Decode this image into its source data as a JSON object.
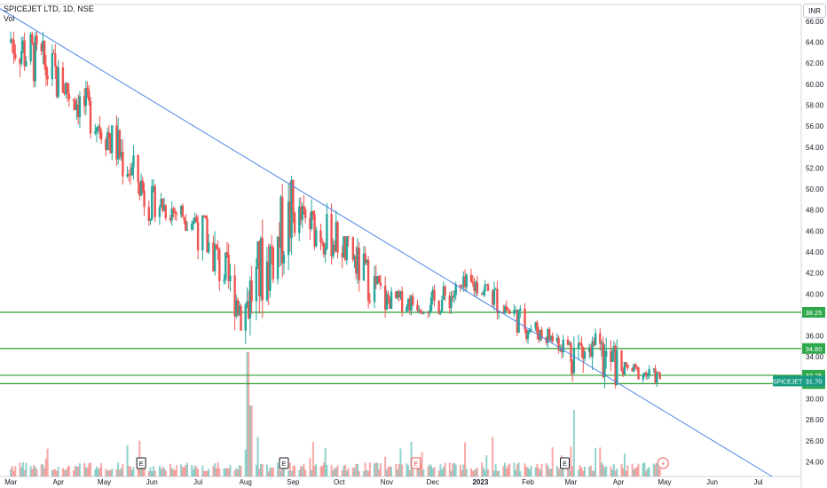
{
  "header": {
    "title": "SPICEJET LTD, 1D, NSE",
    "volume_label": "Vol",
    "currency": "INR"
  },
  "colors": {
    "up": "#26a69a",
    "down": "#ef5350",
    "support_lines": "#2e9e2e",
    "trendline": "#4a86e8",
    "axis_text": "#131722",
    "grid_border": "#d1d4dc",
    "tag_green": "#2ea84a",
    "tag_teal": "#1b9c85"
  },
  "icons": {
    "event_marker": "earnings-e-icon",
    "dividend_marker": "dividend-e-icon",
    "lightning": "lightning-icon"
  },
  "chart_data": {
    "type": "candlestick",
    "title": "SPICEJET LTD, 1D, NSE",
    "xlabel": "",
    "ylabel": "",
    "currency": "INR",
    "y_ticks": [
      24.0,
      26.0,
      28.0,
      30.0,
      32.0,
      34.0,
      36.0,
      38.0,
      40.0,
      42.0,
      44.0,
      46.0,
      48.0,
      50.0,
      52.0,
      54.0,
      56.0,
      58.0,
      60.0,
      62.0,
      64.0,
      66.0
    ],
    "ylim": [
      22.6,
      67.6
    ],
    "x_ticks": [
      "Mar",
      "Apr",
      "May",
      "Jun",
      "Jul",
      "Aug",
      "Sep",
      "Oct",
      "Nov",
      "Dec",
      "2023",
      "Feb",
      "Mar",
      "Apr",
      "May",
      "Jun",
      "Jul"
    ],
    "grid": false,
    "horizontal_levels": [
      {
        "label": "38.25",
        "value": 38.25
      },
      {
        "label": "34.80",
        "value": 34.8
      },
      {
        "label": "32.25",
        "value": 32.25
      },
      {
        "label": "31.45",
        "value": 31.45
      }
    ],
    "last_price": {
      "symbol": "SPICEJET",
      "value": 31.7
    },
    "trendline": {
      "from": {
        "date": "2022-02-22",
        "price": 67.2
      },
      "to": {
        "date": "2023-07-10",
        "price": 22.6
      }
    },
    "monthly_price": [
      {
        "month": "Mar 2022",
        "open": 64.5,
        "high": 65.0,
        "low": 53.5,
        "close": 60.5
      },
      {
        "month": "Apr 2022",
        "open": 60.5,
        "high": 62.3,
        "low": 53.5,
        "close": 56.0
      },
      {
        "month": "May 2022",
        "open": 56.0,
        "high": 57.0,
        "low": 46.5,
        "close": 49.0
      },
      {
        "month": "Jun 2022",
        "open": 49.0,
        "high": 52.5,
        "low": 46.0,
        "close": 47.0
      },
      {
        "month": "Jul 2022",
        "open": 47.0,
        "high": 47.5,
        "low": 36.5,
        "close": 38.5
      },
      {
        "month": "Aug 2022",
        "open": 38.5,
        "high": 52.5,
        "low": 35.0,
        "close": 47.5
      },
      {
        "month": "Sep 2022",
        "open": 47.5,
        "high": 49.5,
        "low": 40.0,
        "close": 45.0
      },
      {
        "month": "Oct 2022",
        "open": 45.0,
        "high": 45.5,
        "low": 36.5,
        "close": 39.5
      },
      {
        "month": "Nov 2022",
        "open": 39.5,
        "high": 42.0,
        "low": 37.5,
        "close": 39.0
      },
      {
        "month": "Dec 2022",
        "open": 39.0,
        "high": 43.5,
        "low": 37.5,
        "close": 41.0
      },
      {
        "month": "Jan 2023",
        "open": 41.0,
        "high": 41.5,
        "low": 35.0,
        "close": 37.0
      },
      {
        "month": "Feb 2023",
        "open": 37.0,
        "high": 37.5,
        "low": 32.5,
        "close": 35.0
      },
      {
        "month": "Mar 2023",
        "open": 35.0,
        "high": 42.2,
        "low": 31.0,
        "close": 33.0
      },
      {
        "month": "Apr 2023",
        "open": 33.0,
        "high": 33.5,
        "low": 30.0,
        "close": 32.0
      },
      {
        "month": "May 2023",
        "open": 32.0,
        "high": 32.8,
        "low": 26.5,
        "close": 31.7
      }
    ],
    "volume_note": "Volume histogram at bottom with spikes in early Aug 2022 and Mar 2023"
  }
}
